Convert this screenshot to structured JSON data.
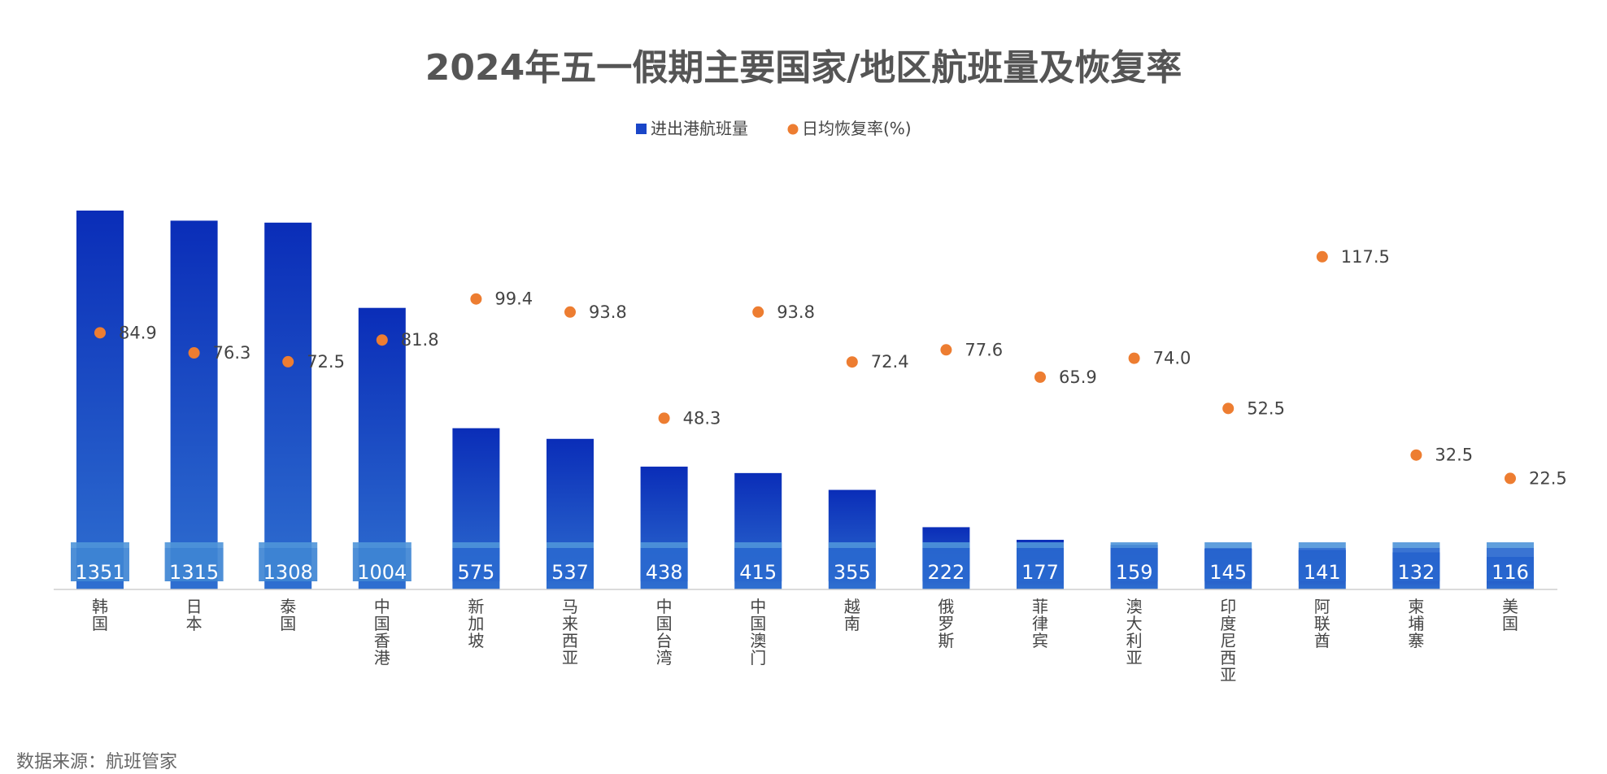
{
  "chart_data": {
    "type": "bar",
    "title": "2024年五一假期主要国家/地区航班量及恢复率",
    "source": "数据来源：航班管家",
    "legend_position": "top-center",
    "grid": false,
    "categories": [
      "韩国",
      "日本",
      "泰国",
      "中国香港",
      "新加坡",
      "马来西亚",
      "中国台湾",
      "中国澳门",
      "越南",
      "俄罗斯",
      "菲律宾",
      "澳大利亚",
      "印度尼西亚",
      "阿联酋",
      "柬埔寨",
      "美国"
    ],
    "series": [
      {
        "name": "进出港航班量",
        "type": "bar",
        "color": "#1a46c8",
        "values": [
          1351,
          1315,
          1308,
          1004,
          575,
          537,
          438,
          415,
          355,
          222,
          177,
          159,
          145,
          141,
          132,
          116
        ],
        "labels": [
          "1351",
          "1315",
          "1308",
          "1004",
          "575",
          "537",
          "438",
          "415",
          "355",
          "222",
          "177",
          "159",
          "145",
          "141",
          "132",
          "116"
        ]
      },
      {
        "name": "日均恢复率(%)",
        "type": "scatter",
        "color": "#ed7d31",
        "values": [
          84.9,
          76.3,
          72.5,
          81.8,
          99.4,
          93.8,
          48.3,
          93.8,
          72.4,
          77.6,
          65.9,
          74.0,
          52.5,
          117.5,
          32.5,
          22.5
        ],
        "labels": [
          "84.9",
          "76.3",
          "72.5",
          "81.8",
          "99.4",
          "93.8",
          "48.3",
          "93.8",
          "72.4",
          "77.6",
          "65.9",
          "74.0",
          "52.5",
          "117.5",
          "32.5",
          "22.5"
        ]
      }
    ]
  }
}
